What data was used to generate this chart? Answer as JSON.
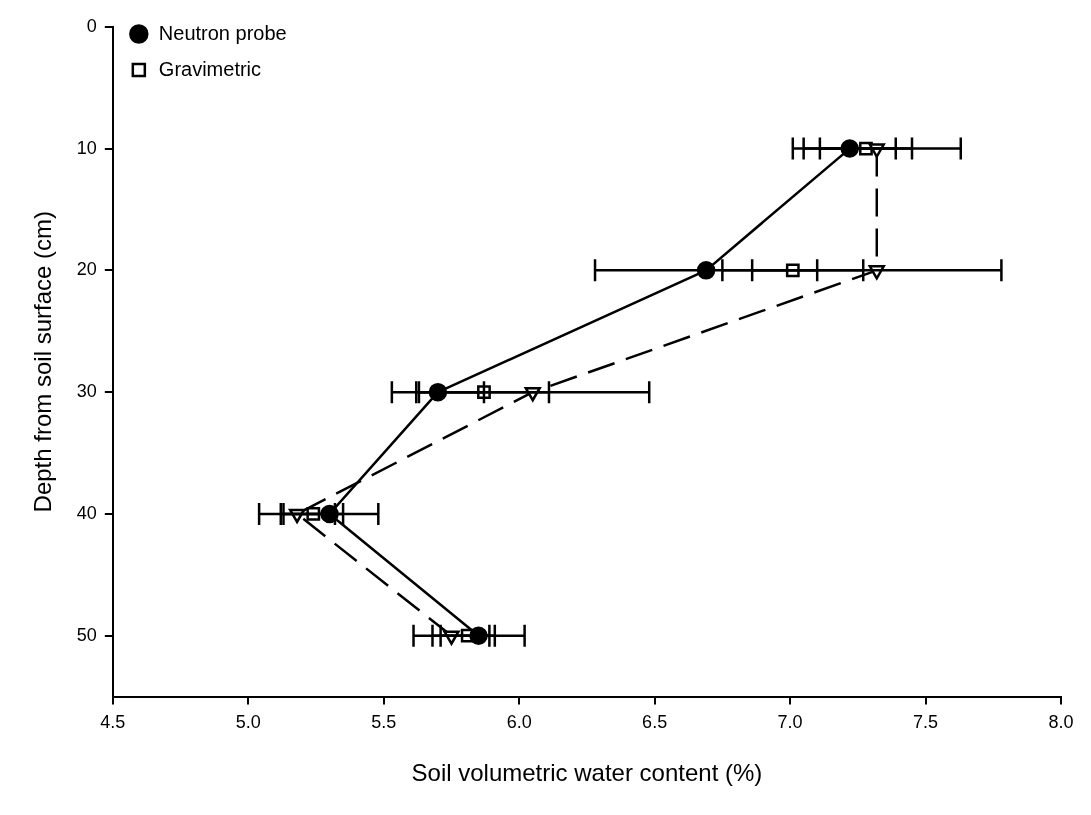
{
  "chart_data": {
    "type": "line",
    "xlabel": "Soil volumetric water content (%)",
    "ylabel": "Depth from soil surface (cm)",
    "xlim": [
      4.5,
      8.0
    ],
    "xticks": [
      {
        "value": 4.5,
        "label": "4.5"
      },
      {
        "value": 5,
        "label": "5.0"
      },
      {
        "value": 5.5,
        "label": "5.5"
      },
      {
        "value": 6,
        "label": "6.0"
      },
      {
        "value": 6.5,
        "label": "6.5"
      },
      {
        "value": 7,
        "label": "7.0"
      },
      {
        "value": 7.5,
        "label": "7.5"
      },
      {
        "value": 8,
        "label": "8.0"
      }
    ],
    "ylim": [
      55,
      0
    ],
    "yticks": [
      0,
      10,
      20,
      30,
      40,
      50
    ],
    "grid": false,
    "legend": "top left",
    "series": [
      {
        "name": "Neutron probe",
        "type": "line",
        "color": "#000000",
        "marker": "circle",
        "line_style": "solid",
        "x": [
          7.22,
          6.69,
          5.7,
          5.3,
          5.85
        ],
        "values": [
          10,
          20,
          30,
          40,
          50
        ],
        "xerrors": [
          0.17,
          0.41,
          0.17,
          0.18,
          0.17
        ]
      },
      {
        "type": "line",
        "color": "#000000",
        "marker": "triangle",
        "line_style": "dashed",
        "x": [
          7.32,
          7.32,
          6.05,
          5.18,
          5.75
        ],
        "values": [
          10,
          20,
          30,
          40,
          50
        ],
        "xerrors": [
          0.31,
          0.46,
          0.43,
          0.14,
          0.14
        ]
      },
      {
        "name": "Gravimetric",
        "type": "scatter",
        "color": "#000000",
        "marker": "square",
        "x": [
          7.28,
          7.01,
          5.87,
          5.24,
          5.81
        ],
        "values": [
          10,
          20,
          30,
          40,
          50
        ],
        "xerrors": [
          0.17,
          0.26,
          0.24,
          0.11,
          0.1
        ]
      }
    ]
  }
}
